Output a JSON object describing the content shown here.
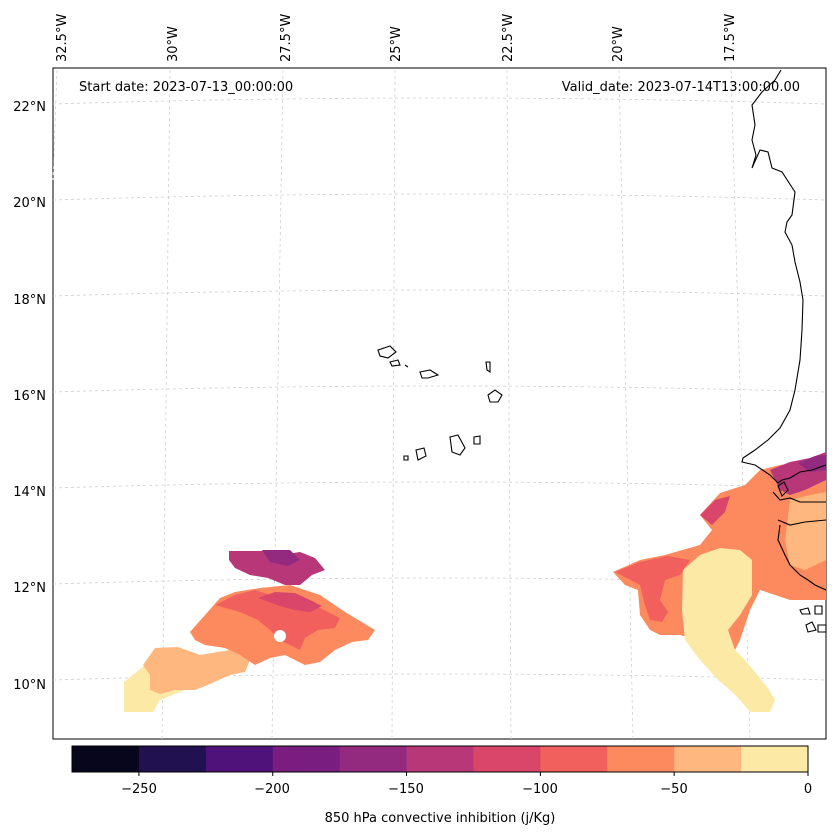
{
  "header": {
    "start_date": "Start date: 2023-07-13_00:00:00",
    "valid_date": "Valid_date: 2023-07-14T13:00:00.00"
  },
  "axes": {
    "lon_labels": [
      "32.5°W",
      "30°W",
      "27.5°W",
      "25°W",
      "22.5°W",
      "20°W",
      "17.5°W"
    ],
    "lat_labels": [
      "22°N",
      "20°N",
      "18°N",
      "16°N",
      "14°N",
      "12°N",
      "10°N"
    ]
  },
  "colorbar": {
    "label": "850 hPa convective inhibition (j/Kg)",
    "tick_labels": [
      "−250",
      "−200",
      "−150",
      "−100",
      "−50",
      "0"
    ],
    "levels": [
      -275,
      -250,
      -225,
      -200,
      -175,
      -150,
      -125,
      -100,
      -75,
      -50,
      -25,
      0
    ],
    "colors": [
      "#07061c",
      "#221150",
      "#4f127b",
      "#7a1d81",
      "#932a80",
      "#b73779",
      "#da4669",
      "#f1605d",
      "#fc8a5e",
      "#feb77e",
      "#fde9a6"
    ]
  },
  "colors": {
    "coastline": "#000000",
    "gridline": "#c8c8c8"
  }
}
